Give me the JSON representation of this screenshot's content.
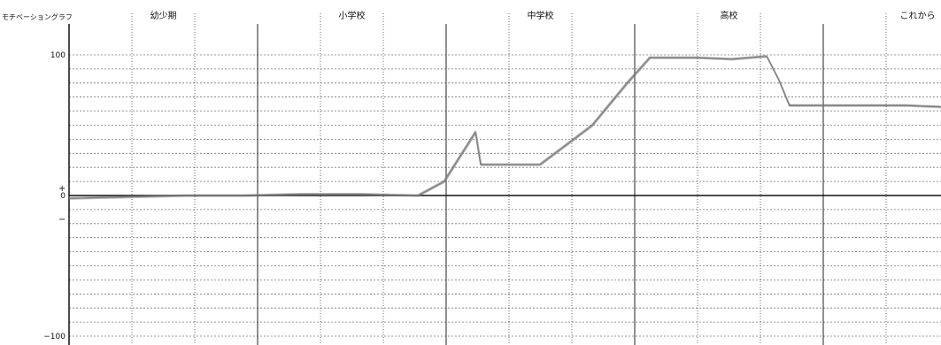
{
  "chart_data": {
    "type": "line",
    "title": "モチベーショングラフ",
    "phases": [
      "幼少期",
      "小学校",
      "中学校",
      "高校",
      "これから"
    ],
    "ylim": [
      -100,
      100
    ],
    "y_ticks": [
      {
        "value": 100,
        "label": "100"
      },
      {
        "value": 0,
        "label": "0"
      },
      {
        "value": -100,
        "label": "−100"
      }
    ],
    "sign_markers": {
      "plus": "+",
      "minus": "−"
    },
    "x_range": [
      0,
      5
    ],
    "x_unit": "phase index (0 = start of 幼少期, 5 = end of これから)",
    "grid": true,
    "series": [
      {
        "name": "",
        "color": "#777777",
        "x": [
          0,
          0.33,
          0.67,
          1.0,
          1.33,
          1.67,
          2.0,
          2.15,
          2.33,
          2.36,
          2.4,
          2.7,
          3.0,
          3.2,
          3.33,
          3.6,
          3.8,
          4.0,
          4.07,
          4.13,
          4.5,
          4.8,
          5.0
        ],
        "y": [
          -2,
          -1,
          0,
          0,
          1,
          1,
          0,
          10,
          45,
          22,
          22,
          22,
          50,
          80,
          98,
          98,
          97,
          99,
          82,
          64,
          64,
          64,
          63
        ]
      }
    ],
    "legend": "none"
  }
}
